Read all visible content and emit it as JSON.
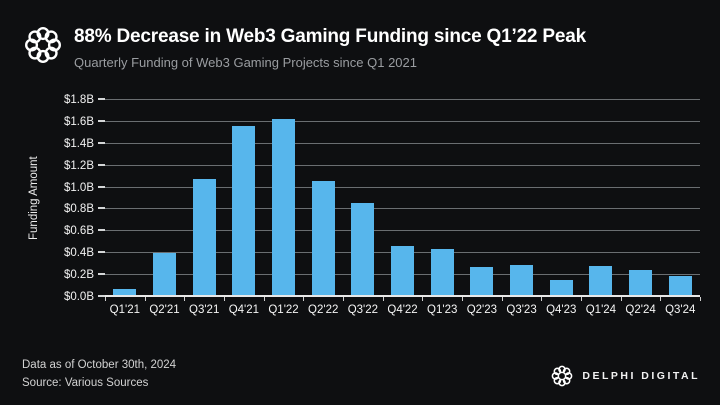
{
  "header": {
    "title": "88% Decrease in Web3 Gaming Funding since Q1’22 Peak",
    "subtitle": "Quarterly Funding of Web3 Gaming Projects since Q1 2021"
  },
  "footer": {
    "data_as_of": "Data as of October 30th, 2024",
    "source": "Source: Various Sources",
    "brand": "DELPHI DIGITAL"
  },
  "icons": {
    "header_logo": "delphi-ring-logo-icon",
    "footer_logo": "delphi-ring-logo-icon"
  },
  "colors": {
    "background": "#0e0f11",
    "bar": "#57b6ec",
    "gridline": "#6a6e71",
    "axis_line": "#e8e8e8",
    "title_text": "#ffffff",
    "subtitle_text": "#9a9da1",
    "tick_label_text": "#f2f2f2",
    "footer_text": "#d2d2d2"
  },
  "chart_data": {
    "type": "bar",
    "title": "88% Decrease in Web3 Gaming Funding since Q1’22 Peak",
    "subtitle": "Quarterly Funding of Web3 Gaming Projects since Q1 2021",
    "categories": [
      "Q1'21",
      "Q2'21",
      "Q3'21",
      "Q4'21",
      "Q1'22",
      "Q2'22",
      "Q3'22",
      "Q4'22",
      "Q1'23",
      "Q2'23",
      "Q3'23",
      "Q4'23",
      "Q1'24",
      "Q2'24",
      "Q3'24"
    ],
    "values": [
      0.07,
      0.4,
      1.08,
      1.56,
      1.63,
      1.06,
      0.86,
      0.47,
      0.44,
      0.27,
      0.29,
      0.16,
      0.28,
      0.25,
      0.19
    ],
    "xlabel": "",
    "ylabel": "Funding Amount",
    "ylim": [
      0,
      1.8
    ],
    "ytick_step": 0.2,
    "ytick_prefix": "$",
    "ytick_suffix": "B",
    "grid": true,
    "legend": "none",
    "bar_color": "#57b6ec"
  }
}
